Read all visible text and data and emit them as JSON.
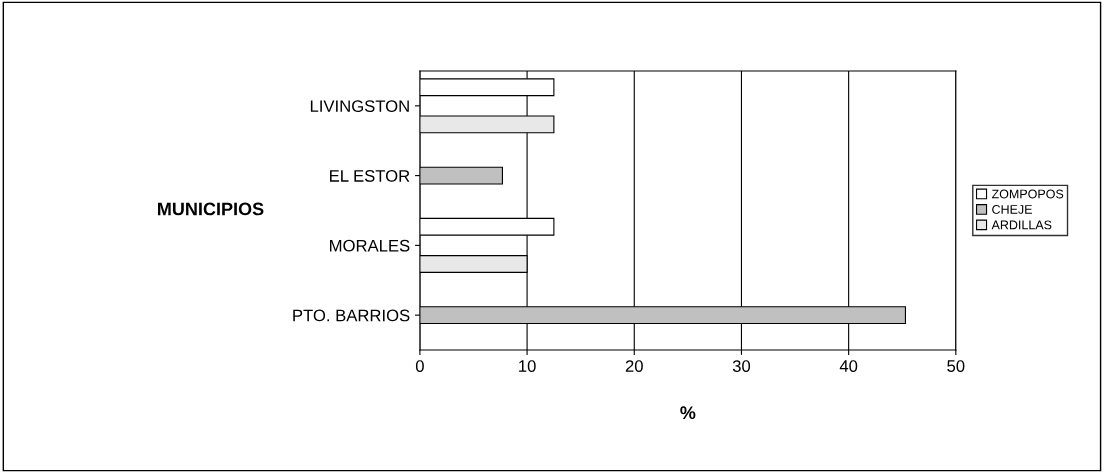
{
  "chart_data": {
    "type": "bar",
    "orientation": "horizontal",
    "ylabel": "MUNICIPIOS",
    "xlabel": "%",
    "categories": [
      "LIVINGSTON",
      "EL ESTOR",
      "MORALES",
      "PTO. BARRIOS"
    ],
    "series": [
      {
        "name": "ZOMPOPOS",
        "color": "#ffffff",
        "values": [
          12.5,
          null,
          12.5,
          null
        ]
      },
      {
        "name": "CHEJE",
        "color": "#c0c0c0",
        "values": [
          null,
          7.7,
          null,
          45.3
        ]
      },
      {
        "name": "ARDILLAS",
        "color": "#e8e8e8",
        "values": [
          12.5,
          null,
          10,
          null
        ]
      }
    ],
    "xlim": [
      0,
      50
    ],
    "xticks": [
      0,
      10,
      20,
      30,
      40,
      50
    ],
    "grid": "x",
    "legend": "right"
  }
}
